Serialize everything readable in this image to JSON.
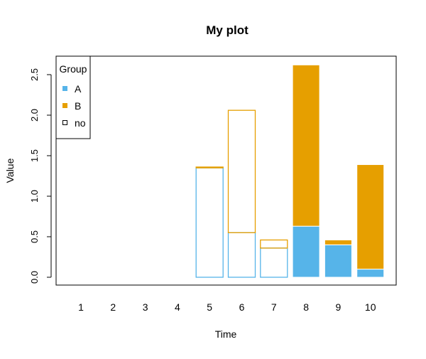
{
  "chart_data": {
    "type": "bar",
    "stacked": true,
    "title": "My plot",
    "xlabel": "Time",
    "ylabel": "Value",
    "categories": [
      "1",
      "2",
      "3",
      "4",
      "5",
      "6",
      "7",
      "8",
      "9",
      "10"
    ],
    "ylim": [
      -0.08,
      2.75
    ],
    "yticks": [
      "0.0",
      "0.5",
      "1.0",
      "1.5",
      "2.0",
      "2.5"
    ],
    "series": [
      {
        "name": "A",
        "color": "#56B4E9",
        "values": [
          0,
          0,
          0,
          0,
          1.35,
          0.55,
          0.36,
          0.63,
          0.4,
          0.1
        ]
      },
      {
        "name": "B",
        "color": "#E69F00",
        "values": [
          0,
          0,
          0,
          0,
          0.01,
          1.51,
          0.1,
          1.99,
          0.06,
          1.29
        ]
      }
    ],
    "filled": [
      false,
      false,
      false,
      false,
      false,
      false,
      false,
      true,
      true,
      true
    ],
    "legend": {
      "title": "Group",
      "placement": "top-left",
      "entries": [
        {
          "label": "A",
          "type": "filled",
          "color": "#56B4E9"
        },
        {
          "label": "B",
          "type": "filled",
          "color": "#E69F00"
        },
        {
          "label": "no",
          "type": "outline",
          "color": "#000000"
        }
      ]
    },
    "grid": false
  }
}
